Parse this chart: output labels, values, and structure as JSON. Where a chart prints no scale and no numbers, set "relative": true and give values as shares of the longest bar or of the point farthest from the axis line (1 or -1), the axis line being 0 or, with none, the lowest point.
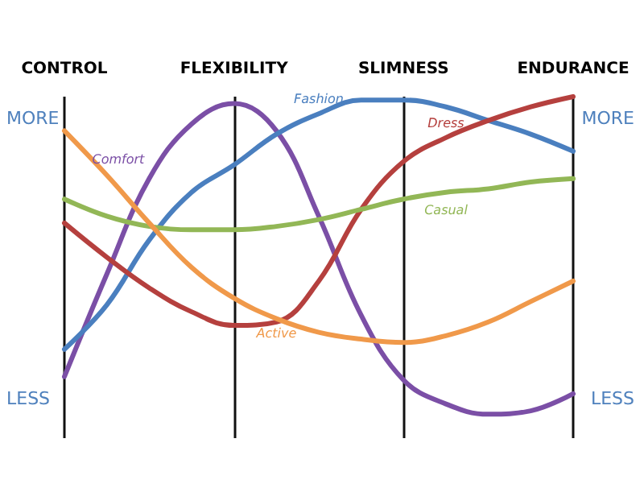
{
  "chart_data": {
    "type": "line",
    "relative": true,
    "categories": [
      "CONTROL",
      null,
      null,
      null,
      "FLEXIBILITY",
      null,
      null,
      null,
      "SLIMNESS",
      null,
      null,
      null,
      "ENDURANCE"
    ],
    "series": [
      {
        "name": "Comfort",
        "color": "#7b4fa6",
        "values": [
          0.18,
          0.48,
          0.76,
          0.92,
          0.98,
          0.9,
          0.65,
          0.36,
          0.17,
          0.1,
          0.07,
          0.08,
          0.13
        ]
      },
      {
        "name": "Fashion",
        "color": "#4a7fbf",
        "values": [
          0.26,
          0.39,
          0.58,
          0.72,
          0.8,
          0.89,
          0.95,
          0.99,
          0.99,
          0.97,
          0.93,
          0.89,
          0.84
        ]
      },
      {
        "name": "Dress",
        "color": "#b5403e",
        "values": [
          0.63,
          0.53,
          0.44,
          0.37,
          0.33,
          0.34,
          0.46,
          0.67,
          0.81,
          0.88,
          0.93,
          0.97,
          1
        ]
      },
      {
        "name": "Casual",
        "color": "#92b756",
        "values": [
          0.7,
          0.65,
          0.62,
          0.61,
          0.61,
          0.62,
          0.64,
          0.67,
          0.7,
          0.72,
          0.73,
          0.75,
          0.76
        ]
      },
      {
        "name": "Active",
        "color": "#f0994a",
        "values": [
          0.9,
          0.77,
          0.63,
          0.5,
          0.41,
          0.35,
          0.31,
          0.29,
          0.28,
          0.3,
          0.34,
          0.4,
          0.46
        ]
      }
    ],
    "annotations": [
      "MORE",
      "LESS",
      "MORE",
      "LESS"
    ],
    "grid": "x",
    "legend": false,
    "marker": "none",
    "line_style": "solid"
  }
}
